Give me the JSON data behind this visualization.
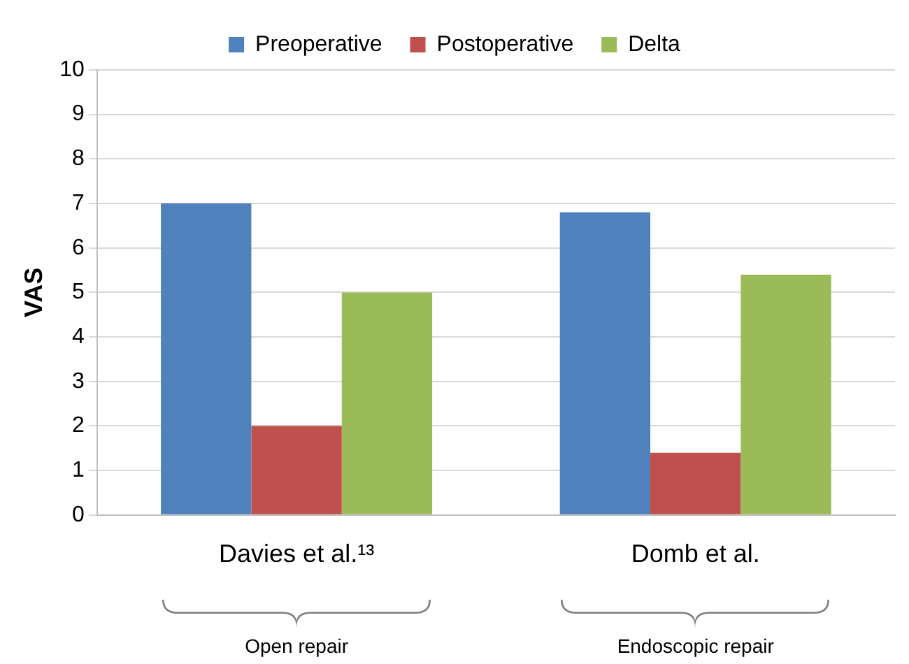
{
  "chart_data": {
    "type": "bar",
    "ylabel": "VAS",
    "categories": [
      "Davies et al.¹³",
      "Domb et al."
    ],
    "series": [
      {
        "name": "Preoperative",
        "color": "#4f81bd",
        "values": [
          7,
          6.8
        ]
      },
      {
        "name": "Postoperative",
        "color": "#c0504d",
        "values": [
          2,
          1.4
        ]
      },
      {
        "name": "Delta",
        "color": "#9bbb59",
        "values": [
          5,
          5.4
        ]
      }
    ],
    "ylim": [
      0,
      10
    ],
    "yticks": [
      0,
      1,
      2,
      3,
      4,
      5,
      6,
      7,
      8,
      9,
      10
    ],
    "grid": "y",
    "legend": "top",
    "annotations": [
      "Open repair",
      "Endoscopic repair"
    ]
  }
}
